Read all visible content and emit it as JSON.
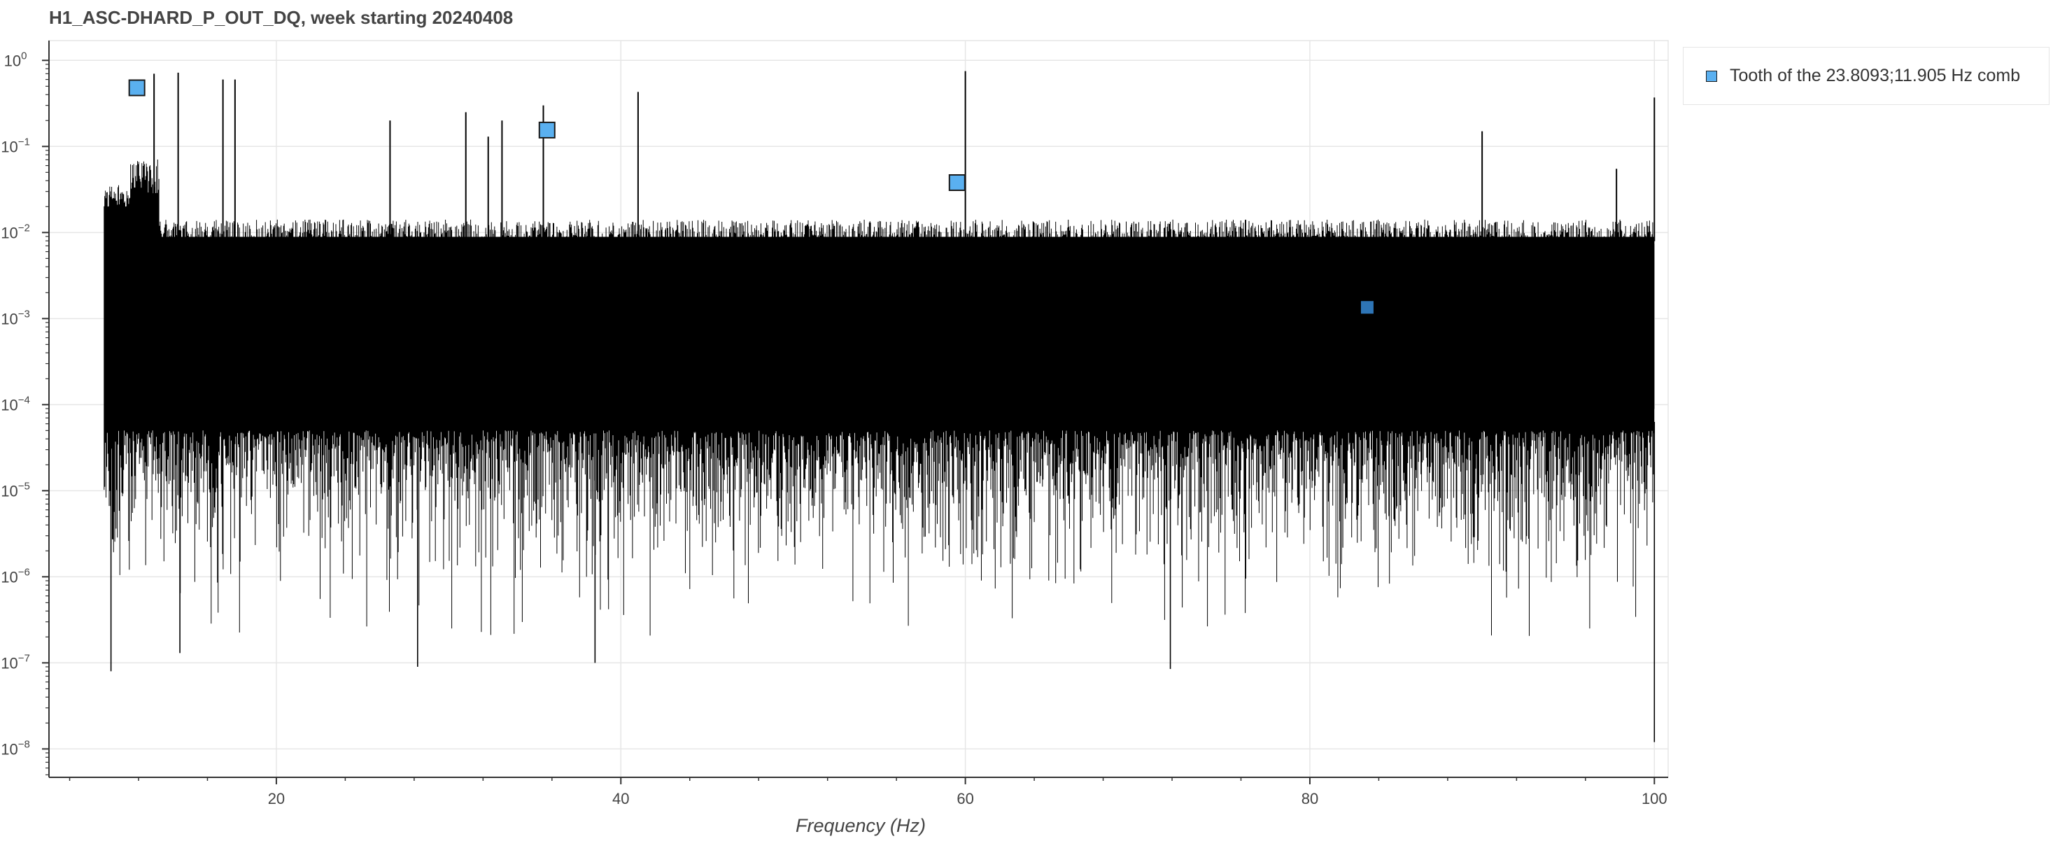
{
  "chart_data": {
    "type": "line",
    "title": "H1_ASC-DHARD_P_OUT_DQ, week starting 20240408",
    "xlabel": "Frequency (Hz)",
    "ylabel": "",
    "x_scale": "linear",
    "y_scale": "log",
    "xlim": [
      6.8,
      100.8
    ],
    "ylim_log10": [
      -8.33,
      0.23
    ],
    "x_ticks": [
      20,
      40,
      60,
      80,
      100
    ],
    "y_ticks": [
      {
        "base": "10",
        "exp": "0"
      },
      {
        "base": "10",
        "exp": "−1"
      },
      {
        "base": "10",
        "exp": "−2"
      },
      {
        "base": "10",
        "exp": "−3"
      },
      {
        "base": "10",
        "exp": "−4"
      },
      {
        "base": "10",
        "exp": "−5"
      },
      {
        "base": "10",
        "exp": "−6"
      },
      {
        "base": "10",
        "exp": "−7"
      },
      {
        "base": "10",
        "exp": "−8"
      }
    ],
    "grid": true,
    "legend_position": "outside-top-right",
    "series": [
      {
        "kind": "spectrum",
        "color": "#000000",
        "x_range": [
          10,
          100
        ],
        "spikes": [
          {
            "x": 12.9,
            "y": 0.7
          },
          {
            "x": 14.3,
            "y": 0.72
          },
          {
            "x": 16.9,
            "y": 0.6
          },
          {
            "x": 17.6,
            "y": 0.6
          },
          {
            "x": 26.6,
            "y": 0.2
          },
          {
            "x": 31.0,
            "y": 0.25
          },
          {
            "x": 32.3,
            "y": 0.13
          },
          {
            "x": 33.1,
            "y": 0.2
          },
          {
            "x": 35.5,
            "y": 0.3
          },
          {
            "x": 41.0,
            "y": 0.43
          },
          {
            "x": 60.0,
            "y": 0.75
          },
          {
            "x": 90.0,
            "y": 0.15
          },
          {
            "x": 97.8,
            "y": 0.055
          },
          {
            "x": 100.0,
            "y": 0.37
          }
        ],
        "dips": [
          {
            "x": 10.4,
            "y": 8e-08
          },
          {
            "x": 14.4,
            "y": 1.3e-07
          },
          {
            "x": 28.2,
            "y": 9e-08
          },
          {
            "x": 38.5,
            "y": 1e-07
          },
          {
            "x": 71.9,
            "y": 8.5e-08
          },
          {
            "x": 100.0,
            "y": 1.2e-08
          }
        ]
      },
      {
        "name": "Tooth of the 23.8093;11.905 Hz comb",
        "kind": "markers",
        "color": "#5ab0f0",
        "x": [
          11.905,
          35.714,
          59.52,
          83.33
        ],
        "y": [
          0.48,
          0.155,
          0.038,
          0.00135
        ]
      }
    ]
  }
}
